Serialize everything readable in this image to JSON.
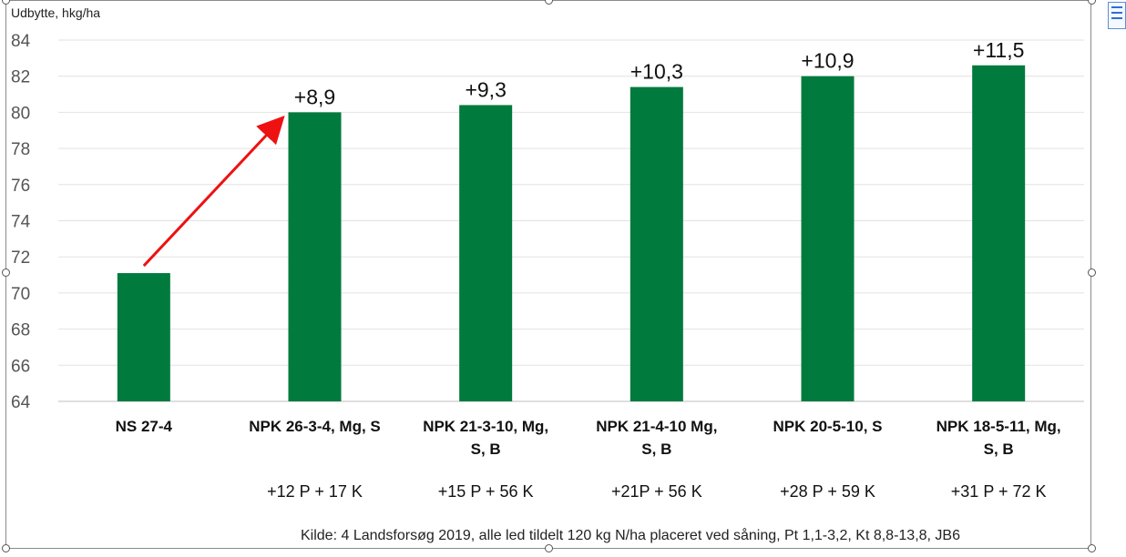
{
  "chart_data": {
    "type": "bar",
    "ylabel": "Udbytte, hkg/ha",
    "ylim": [
      64,
      84
    ],
    "yticks": [
      64,
      66,
      68,
      70,
      72,
      74,
      76,
      78,
      80,
      82,
      84
    ],
    "grid": true,
    "categories": [
      [
        "NS 27-4"
      ],
      [
        "NPK 26-3-4, Mg, S"
      ],
      [
        "NPK 21-3-10, Mg,",
        "S, B"
      ],
      [
        "NPK 21-4-10 Mg,",
        "S, B"
      ],
      [
        "NPK 20-5-10, S"
      ],
      [
        "NPK 18-5-11, Mg,",
        "S, B"
      ]
    ],
    "sublabels": [
      "",
      "+12 P + 17 K",
      "+15 P + 56 K",
      "+21P + 56 K",
      "+28 P + 59 K",
      "+31 P + 72 K"
    ],
    "values": [
      71.1,
      80.0,
      80.4,
      81.4,
      82.0,
      82.6
    ],
    "data_labels": [
      "",
      "+8,9",
      "+9,3",
      "+10,3",
      "+10,9",
      "+11,5"
    ],
    "bar_color": "#007a3d",
    "arrow_color": "#ee1111",
    "arrow": {
      "from_category": 0,
      "to_category": 1
    }
  },
  "source_note": "Kilde: 4 Landsforsøg 2019, alle led tildelt 120 kg N/ha placeret ved såning, Pt 1,1-3,2, Kt 8,8-13,8, JB6"
}
